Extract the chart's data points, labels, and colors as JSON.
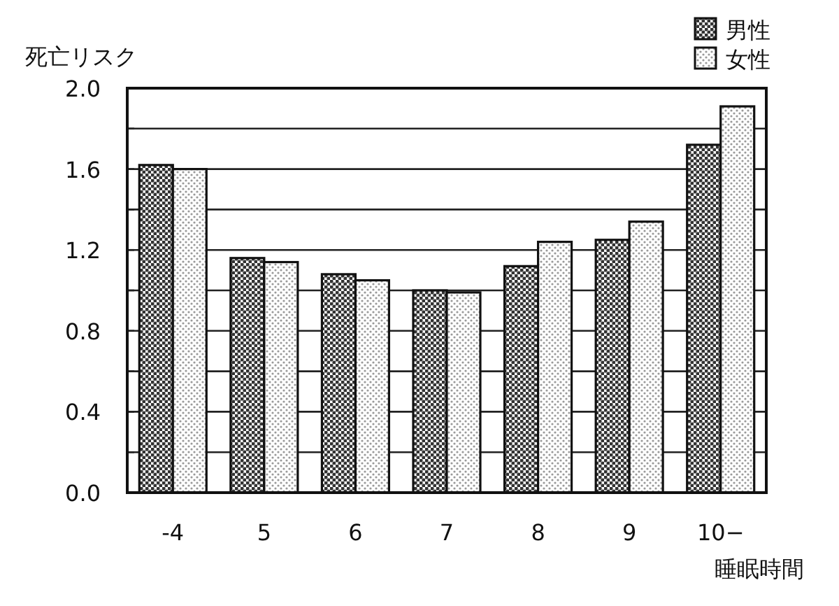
{
  "chart_data": {
    "type": "bar",
    "ylabel": "死亡リスク",
    "xlabel": "睡眠時間",
    "categories": [
      "-4",
      "5",
      "6",
      "7",
      "8",
      "9",
      "10−"
    ],
    "series": [
      {
        "name": "男性",
        "color": "#111111",
        "values": [
          1.62,
          1.16,
          1.08,
          1.0,
          1.12,
          1.25,
          1.72
        ]
      },
      {
        "name": "女性",
        "color": "#111111",
        "values": [
          1.6,
          1.14,
          1.05,
          0.99,
          1.24,
          1.34,
          1.91
        ]
      }
    ],
    "ylim": [
      0,
      2.0
    ],
    "yticks": [
      {
        "value": 0,
        "label": "0.0"
      },
      {
        "value": 0.2,
        "label": null
      },
      {
        "value": 0.4,
        "label": "0.4"
      },
      {
        "value": 0.6,
        "label": null
      },
      {
        "value": 0.8,
        "label": "0.8"
      },
      {
        "value": 1.0,
        "label": null
      },
      {
        "value": 1.2,
        "label": "1.2"
      },
      {
        "value": 1.4,
        "label": null
      },
      {
        "value": 1.6,
        "label": "1.6"
      },
      {
        "value": 1.8,
        "label": null
      },
      {
        "value": 2.0,
        "label": "2.0"
      }
    ],
    "grid": "y",
    "legend": "top right"
  }
}
